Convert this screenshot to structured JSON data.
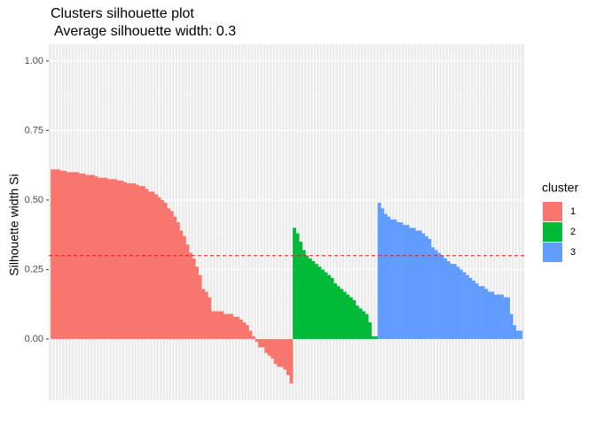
{
  "chart_data": {
    "type": "bar",
    "title": "Clusters silhouette plot",
    "subtitle": "Average silhouette width: 0.3",
    "y_label": "Silhouette width Si",
    "legend_title": "cluster",
    "ylim": [
      -0.22,
      1.06
    ],
    "yticks": [
      {
        "value": 0,
        "label": "0.00"
      },
      {
        "value": 0.25,
        "label": "0.25"
      },
      {
        "value": 0.5,
        "label": "0.50"
      },
      {
        "value": 0.75,
        "label": "0.75"
      },
      {
        "value": 1,
        "label": "1.00"
      }
    ],
    "grid": true,
    "hline": 0.3,
    "hline_color": "#e41a1c",
    "series": [
      {
        "name": "1",
        "color": "#F8766D",
        "values": [
          0.61,
          0.61,
          0.61,
          0.605,
          0.605,
          0.6,
          0.6,
          0.6,
          0.6,
          0.595,
          0.595,
          0.59,
          0.59,
          0.59,
          0.585,
          0.58,
          0.58,
          0.58,
          0.575,
          0.575,
          0.575,
          0.57,
          0.57,
          0.565,
          0.56,
          0.56,
          0.56,
          0.555,
          0.55,
          0.55,
          0.54,
          0.53,
          0.53,
          0.52,
          0.51,
          0.5,
          0.49,
          0.47,
          0.46,
          0.44,
          0.42,
          0.39,
          0.37,
          0.34,
          0.31,
          0.29,
          0.26,
          0.23,
          0.18,
          0.17,
          0.15,
          0.1,
          0.1,
          0.1,
          0.1,
          0.09,
          0.09,
          0.09,
          0.08,
          0.08,
          0.07,
          0.06,
          0.05,
          0.03,
          0.01,
          -0.01,
          -0.03,
          -0.03,
          -0.05,
          -0.06,
          -0.07,
          -0.09,
          -0.1,
          -0.1,
          -0.11,
          -0.13,
          -0.16
        ]
      },
      {
        "name": "2",
        "color": "#00BA38",
        "values": [
          0.4,
          0.38,
          0.35,
          0.32,
          0.3,
          0.29,
          0.28,
          0.27,
          0.26,
          0.25,
          0.24,
          0.23,
          0.22,
          0.2,
          0.19,
          0.18,
          0.17,
          0.16,
          0.15,
          0.14,
          0.12,
          0.11,
          0.1,
          0.09,
          0.06,
          0.01,
          0.01
        ]
      },
      {
        "name": "3",
        "color": "#619CFF",
        "values": [
          0.49,
          0.47,
          0.45,
          0.44,
          0.43,
          0.43,
          0.42,
          0.42,
          0.41,
          0.41,
          0.4,
          0.4,
          0.39,
          0.39,
          0.38,
          0.37,
          0.36,
          0.33,
          0.32,
          0.31,
          0.3,
          0.29,
          0.28,
          0.27,
          0.27,
          0.26,
          0.25,
          0.24,
          0.23,
          0.22,
          0.21,
          0.2,
          0.19,
          0.19,
          0.18,
          0.17,
          0.17,
          0.16,
          0.16,
          0.16,
          0.15,
          0.15,
          0.09,
          0.05,
          0.03,
          0.03
        ]
      }
    ]
  }
}
